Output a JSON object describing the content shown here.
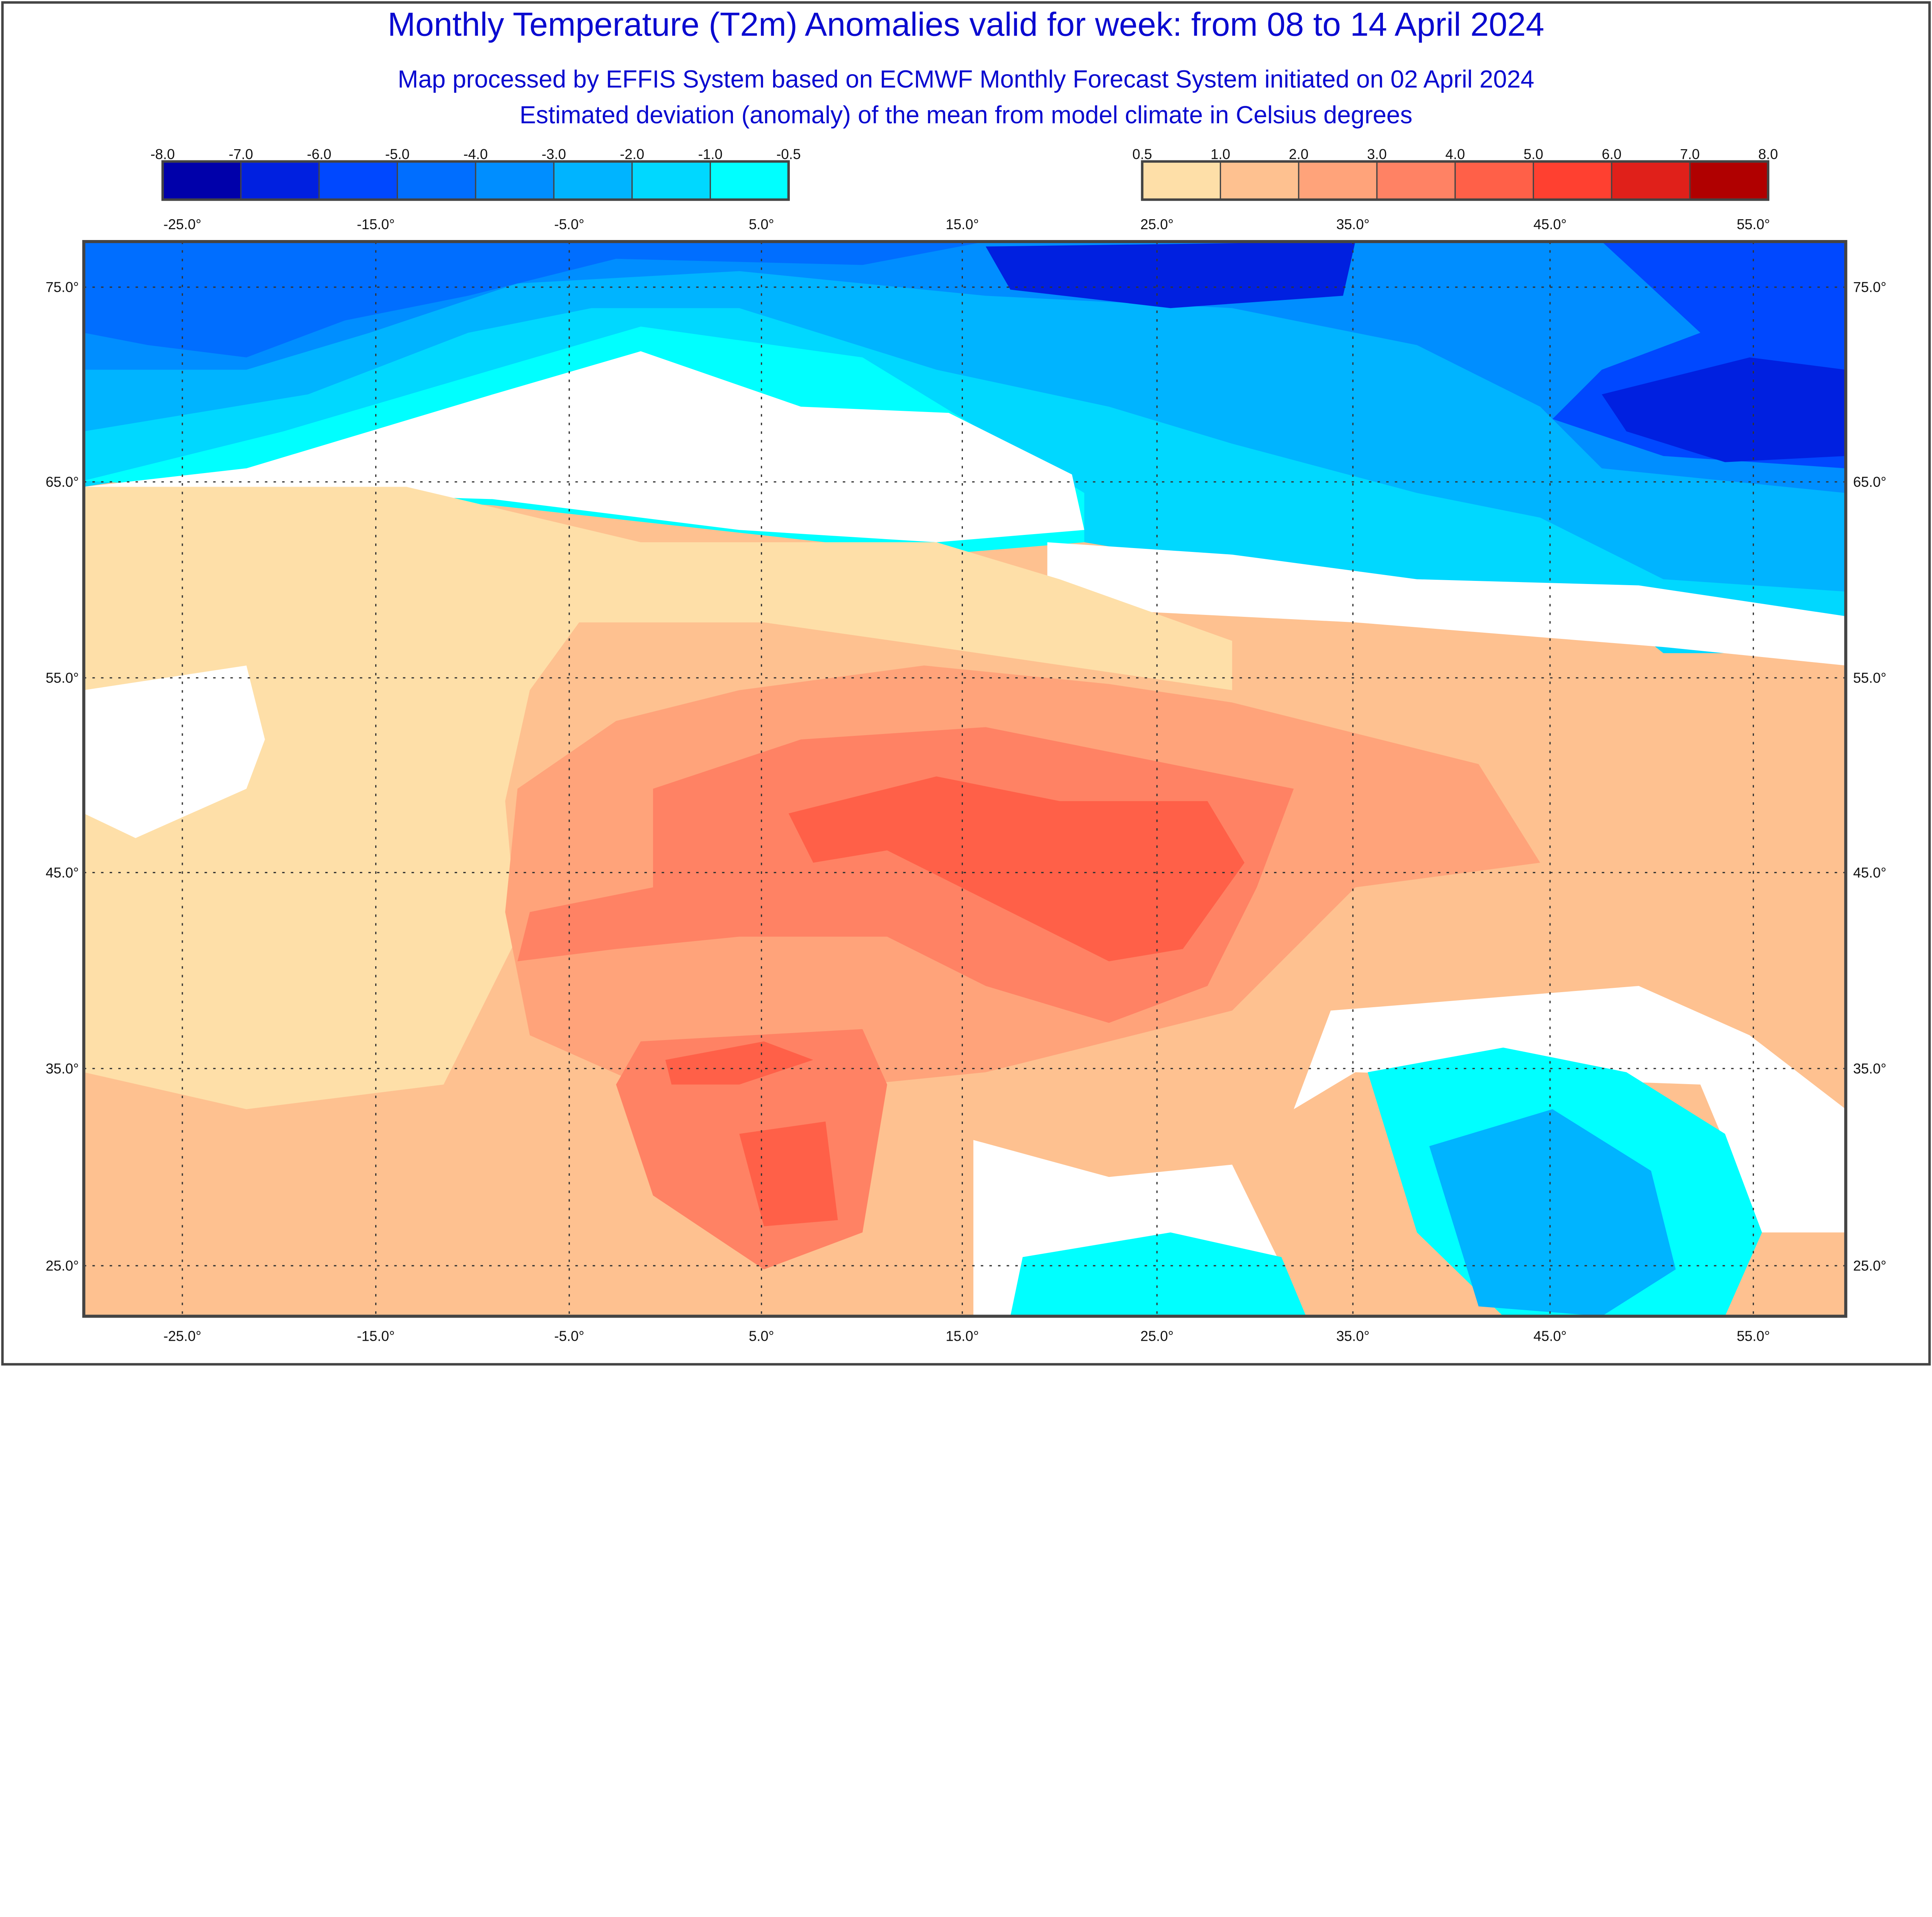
{
  "title": "Monthly Temperature (T2m) Anomalies valid for week: from 08 to 14 April 2024",
  "subtitle1": "Map processed by EFFIS System based on ECMWF Monthly Forecast System initiated on 02 April 2024",
  "subtitle2": "Estimated deviation (anomaly) of the mean from model climate in Celsius degrees",
  "legend_negative": {
    "labels": [
      "-8.0",
      "-7.0",
      "-6.0",
      "-5.0",
      "-4.0",
      "-3.0",
      "-2.0",
      "-1.0",
      "-0.5"
    ],
    "colors": [
      "#0000AA",
      "#0020E0",
      "#0048FF",
      "#006EFF",
      "#008EFF",
      "#00B4FF",
      "#00D8FF",
      "#00FFFF"
    ]
  },
  "legend_positive": {
    "labels": [
      "0.5",
      "1.0",
      "2.0",
      "3.0",
      "4.0",
      "5.0",
      "6.0",
      "7.0",
      "8.0"
    ],
    "colors": [
      "#FEDFA8",
      "#FEC190",
      "#FFA37A",
      "#FF8264",
      "#FF6048",
      "#FF4030",
      "#E0201A",
      "#B00000"
    ]
  },
  "no_anomaly_color": "#FFFFFF",
  "map": {
    "lon_labels": [
      "-25.0°",
      "-15.0°",
      "-5.0°",
      "5.0°",
      "15.0°",
      "25.0°",
      "35.0°",
      "45.0°",
      "55.0°"
    ],
    "lat_labels": [
      "75.0°",
      "65.0°",
      "55.0°",
      "45.0°",
      "35.0°",
      "25.0°"
    ]
  }
}
